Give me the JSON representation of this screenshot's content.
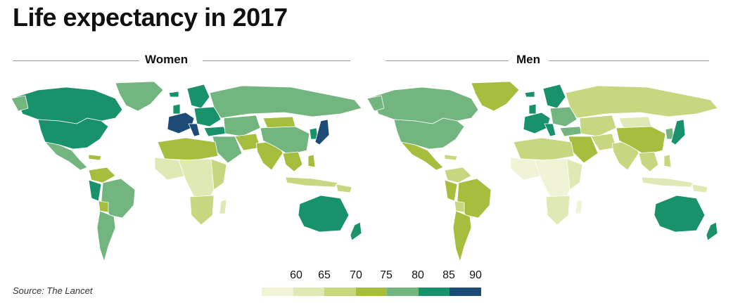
{
  "title": "Life expectancy in 2017",
  "panels": {
    "women": {
      "label": "Women"
    },
    "men": {
      "label": "Men"
    }
  },
  "legend": {
    "ticks": [
      "60",
      "65",
      "70",
      "75",
      "80",
      "85",
      "90"
    ],
    "colors": [
      "#f1f3d6",
      "#dfe9b4",
      "#c6d77f",
      "#a5be3d",
      "#72b57f",
      "#19926b",
      "#1d4b77"
    ]
  },
  "source": "Source: The Lancet"
}
